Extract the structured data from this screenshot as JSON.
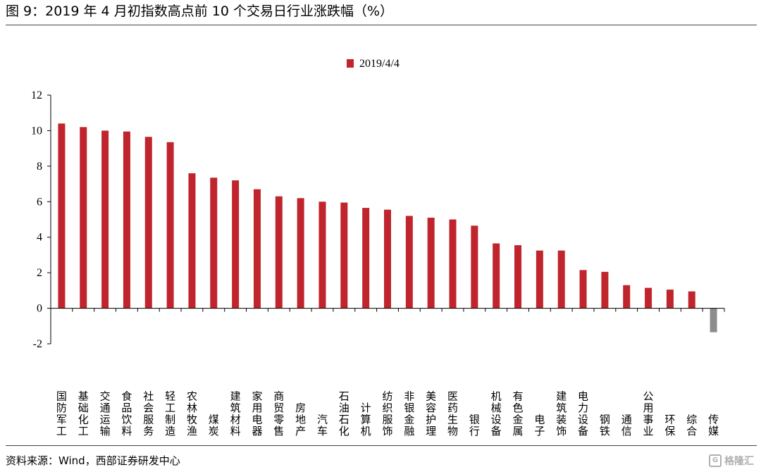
{
  "figure": {
    "title": "图 9：2019 年 4 月初指数高点前 10 个交易日行业涨跌幅（%）",
    "source": "资料来源：Wind，西部证券研发中心",
    "watermark": "格隆汇",
    "watermark_icon": "G"
  },
  "chart_data": {
    "type": "bar",
    "title": "",
    "xlabel": "",
    "ylabel": "",
    "ylim": [
      -2,
      12
    ],
    "yticks": [
      -2,
      0,
      2,
      4,
      6,
      8,
      10,
      12
    ],
    "grid": false,
    "legend_position": "top-center",
    "categories": [
      "国防军工",
      "基础化工",
      "交通运输",
      "食品饮料",
      "社会服务",
      "轻工制造",
      "农林牧渔",
      "煤炭",
      "建筑材料",
      "家用电器",
      "商贸零售",
      "房地产",
      "汽车",
      "石油石化",
      "计算机",
      "纺织服饰",
      "非银金融",
      "美容护理",
      "医药生物",
      "银行",
      "机械设备",
      "有色金属",
      "电子",
      "建筑装饰",
      "电力设备",
      "钢铁",
      "通信",
      "公用事业",
      "环保",
      "综合",
      "传媒"
    ],
    "series": [
      {
        "name": "2019/4/4",
        "color": "#C0242C",
        "negative_color": "#8C8C8C",
        "values": [
          10.4,
          10.2,
          10.0,
          9.95,
          9.65,
          9.35,
          7.6,
          7.35,
          7.2,
          6.7,
          6.3,
          6.2,
          6.0,
          5.95,
          5.65,
          5.55,
          5.2,
          5.1,
          5.0,
          4.65,
          3.65,
          3.55,
          3.25,
          3.25,
          2.15,
          2.05,
          1.3,
          1.15,
          1.05,
          0.95,
          -1.35
        ]
      }
    ]
  }
}
